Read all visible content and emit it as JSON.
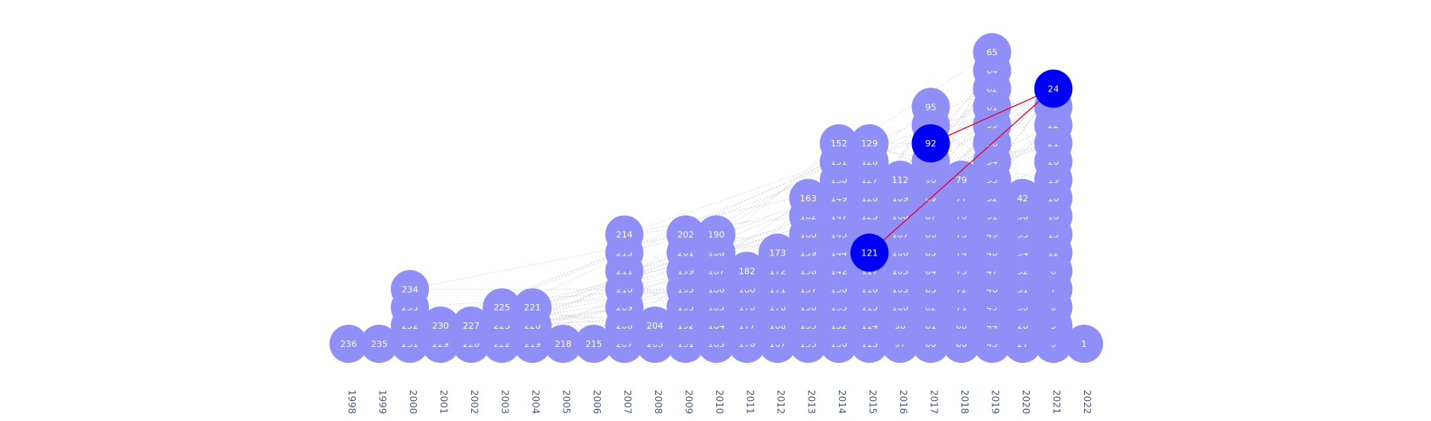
{
  "chart_data": {
    "type": "scatter",
    "description_note": "",
    "x_categories": [
      "1998",
      "1999",
      "2000",
      "2001",
      "2002",
      "2003",
      "2004",
      "2005",
      "2006",
      "2007",
      "2008",
      "2009",
      "2010",
      "2011",
      "2012",
      "2013",
      "2014",
      "2015",
      "2016",
      "2017",
      "2018",
      "2019",
      "2020",
      "2021",
      "2022"
    ],
    "columns": [
      {
        "year": "1998",
        "nodes": [
          "236"
        ]
      },
      {
        "year": "1999",
        "nodes": [
          "235"
        ]
      },
      {
        "year": "2000",
        "nodes": [
          "231",
          "232",
          "233",
          "234"
        ]
      },
      {
        "year": "2001",
        "nodes": [
          "229",
          "230"
        ]
      },
      {
        "year": "2002",
        "nodes": [
          "226",
          "227"
        ]
      },
      {
        "year": "2003",
        "nodes": [
          "222",
          "223",
          "225"
        ]
      },
      {
        "year": "2004",
        "nodes": [
          "219",
          "220",
          "221"
        ]
      },
      {
        "year": "2005",
        "nodes": [
          "218"
        ]
      },
      {
        "year": "2006",
        "nodes": [
          "215"
        ]
      },
      {
        "year": "2007",
        "nodes": [
          "207",
          "208",
          "209",
          "210",
          "211",
          "213",
          "214"
        ]
      },
      {
        "year": "2008",
        "nodes": [
          "203",
          "204"
        ]
      },
      {
        "year": "2009",
        "nodes": [
          "191",
          "192",
          "193",
          "195",
          "199",
          "201",
          "202"
        ]
      },
      {
        "year": "2010",
        "nodes": [
          "183",
          "184",
          "185",
          "186",
          "187",
          "188",
          "190"
        ]
      },
      {
        "year": "2011",
        "nodes": [
          "176",
          "177",
          "178",
          "180",
          "182"
        ]
      },
      {
        "year": "2012",
        "nodes": [
          "167",
          "168",
          "170",
          "171",
          "172",
          "173"
        ]
      },
      {
        "year": "2013",
        "nodes": [
          "153",
          "155",
          "156",
          "157",
          "158",
          "159",
          "160",
          "162",
          "163"
        ]
      },
      {
        "year": "2014",
        "nodes": [
          "130",
          "132",
          "133",
          "136",
          "142",
          "144",
          "145",
          "147",
          "149",
          "150",
          "151",
          "152"
        ]
      },
      {
        "year": "2015",
        "nodes": [
          "113",
          "114",
          "115",
          "116",
          "117",
          "121",
          "122",
          "123",
          "126",
          "127",
          "128",
          "129"
        ]
      },
      {
        "year": "2016",
        "nodes": [
          "97",
          "98",
          "100",
          "103",
          "105",
          "106",
          "107",
          "108",
          "109",
          "112"
        ]
      },
      {
        "year": "2017",
        "nodes": [
          "80",
          "81",
          "82",
          "83",
          "84",
          "85",
          "86",
          "87",
          "89",
          "90",
          "",
          "92",
          "94",
          "95"
        ]
      },
      {
        "year": "2018",
        "nodes": [
          "66",
          "68",
          "71",
          "72",
          "73",
          "74",
          "75",
          "76",
          "77",
          "79"
        ]
      },
      {
        "year": "2019",
        "nodes": [
          "43",
          "44",
          "45",
          "46",
          "47",
          "48",
          "49",
          "51",
          "52",
          "53",
          "54",
          "56",
          "59",
          "61",
          "62",
          "64",
          "65"
        ]
      },
      {
        "year": "2020",
        "nodes": [
          "27",
          "28",
          "30",
          "31",
          "32",
          "34",
          "35",
          "38",
          "42"
        ]
      },
      {
        "year": "2021",
        "nodes": [
          "3",
          "5",
          "6",
          "7",
          "8",
          "12",
          "15",
          "16",
          "18",
          "19",
          "20",
          "21",
          "22",
          "",
          "24"
        ]
      },
      {
        "year": "2022",
        "nodes": [
          "1"
        ]
      }
    ],
    "highlighted_nodes": [
      "24",
      "92",
      "121"
    ],
    "highlighted_edges": [
      [
        "24",
        "92"
      ],
      [
        "24",
        "121"
      ]
    ],
    "colors": {
      "node": "#8f8ff7",
      "node_highlight": "#0000f5",
      "node_label": "#ffffcc",
      "edge": "#c4c4d4",
      "edge_highlight": "#e8002a",
      "tick_label": "#4a5a78"
    },
    "legend": "none",
    "grid": false
  }
}
